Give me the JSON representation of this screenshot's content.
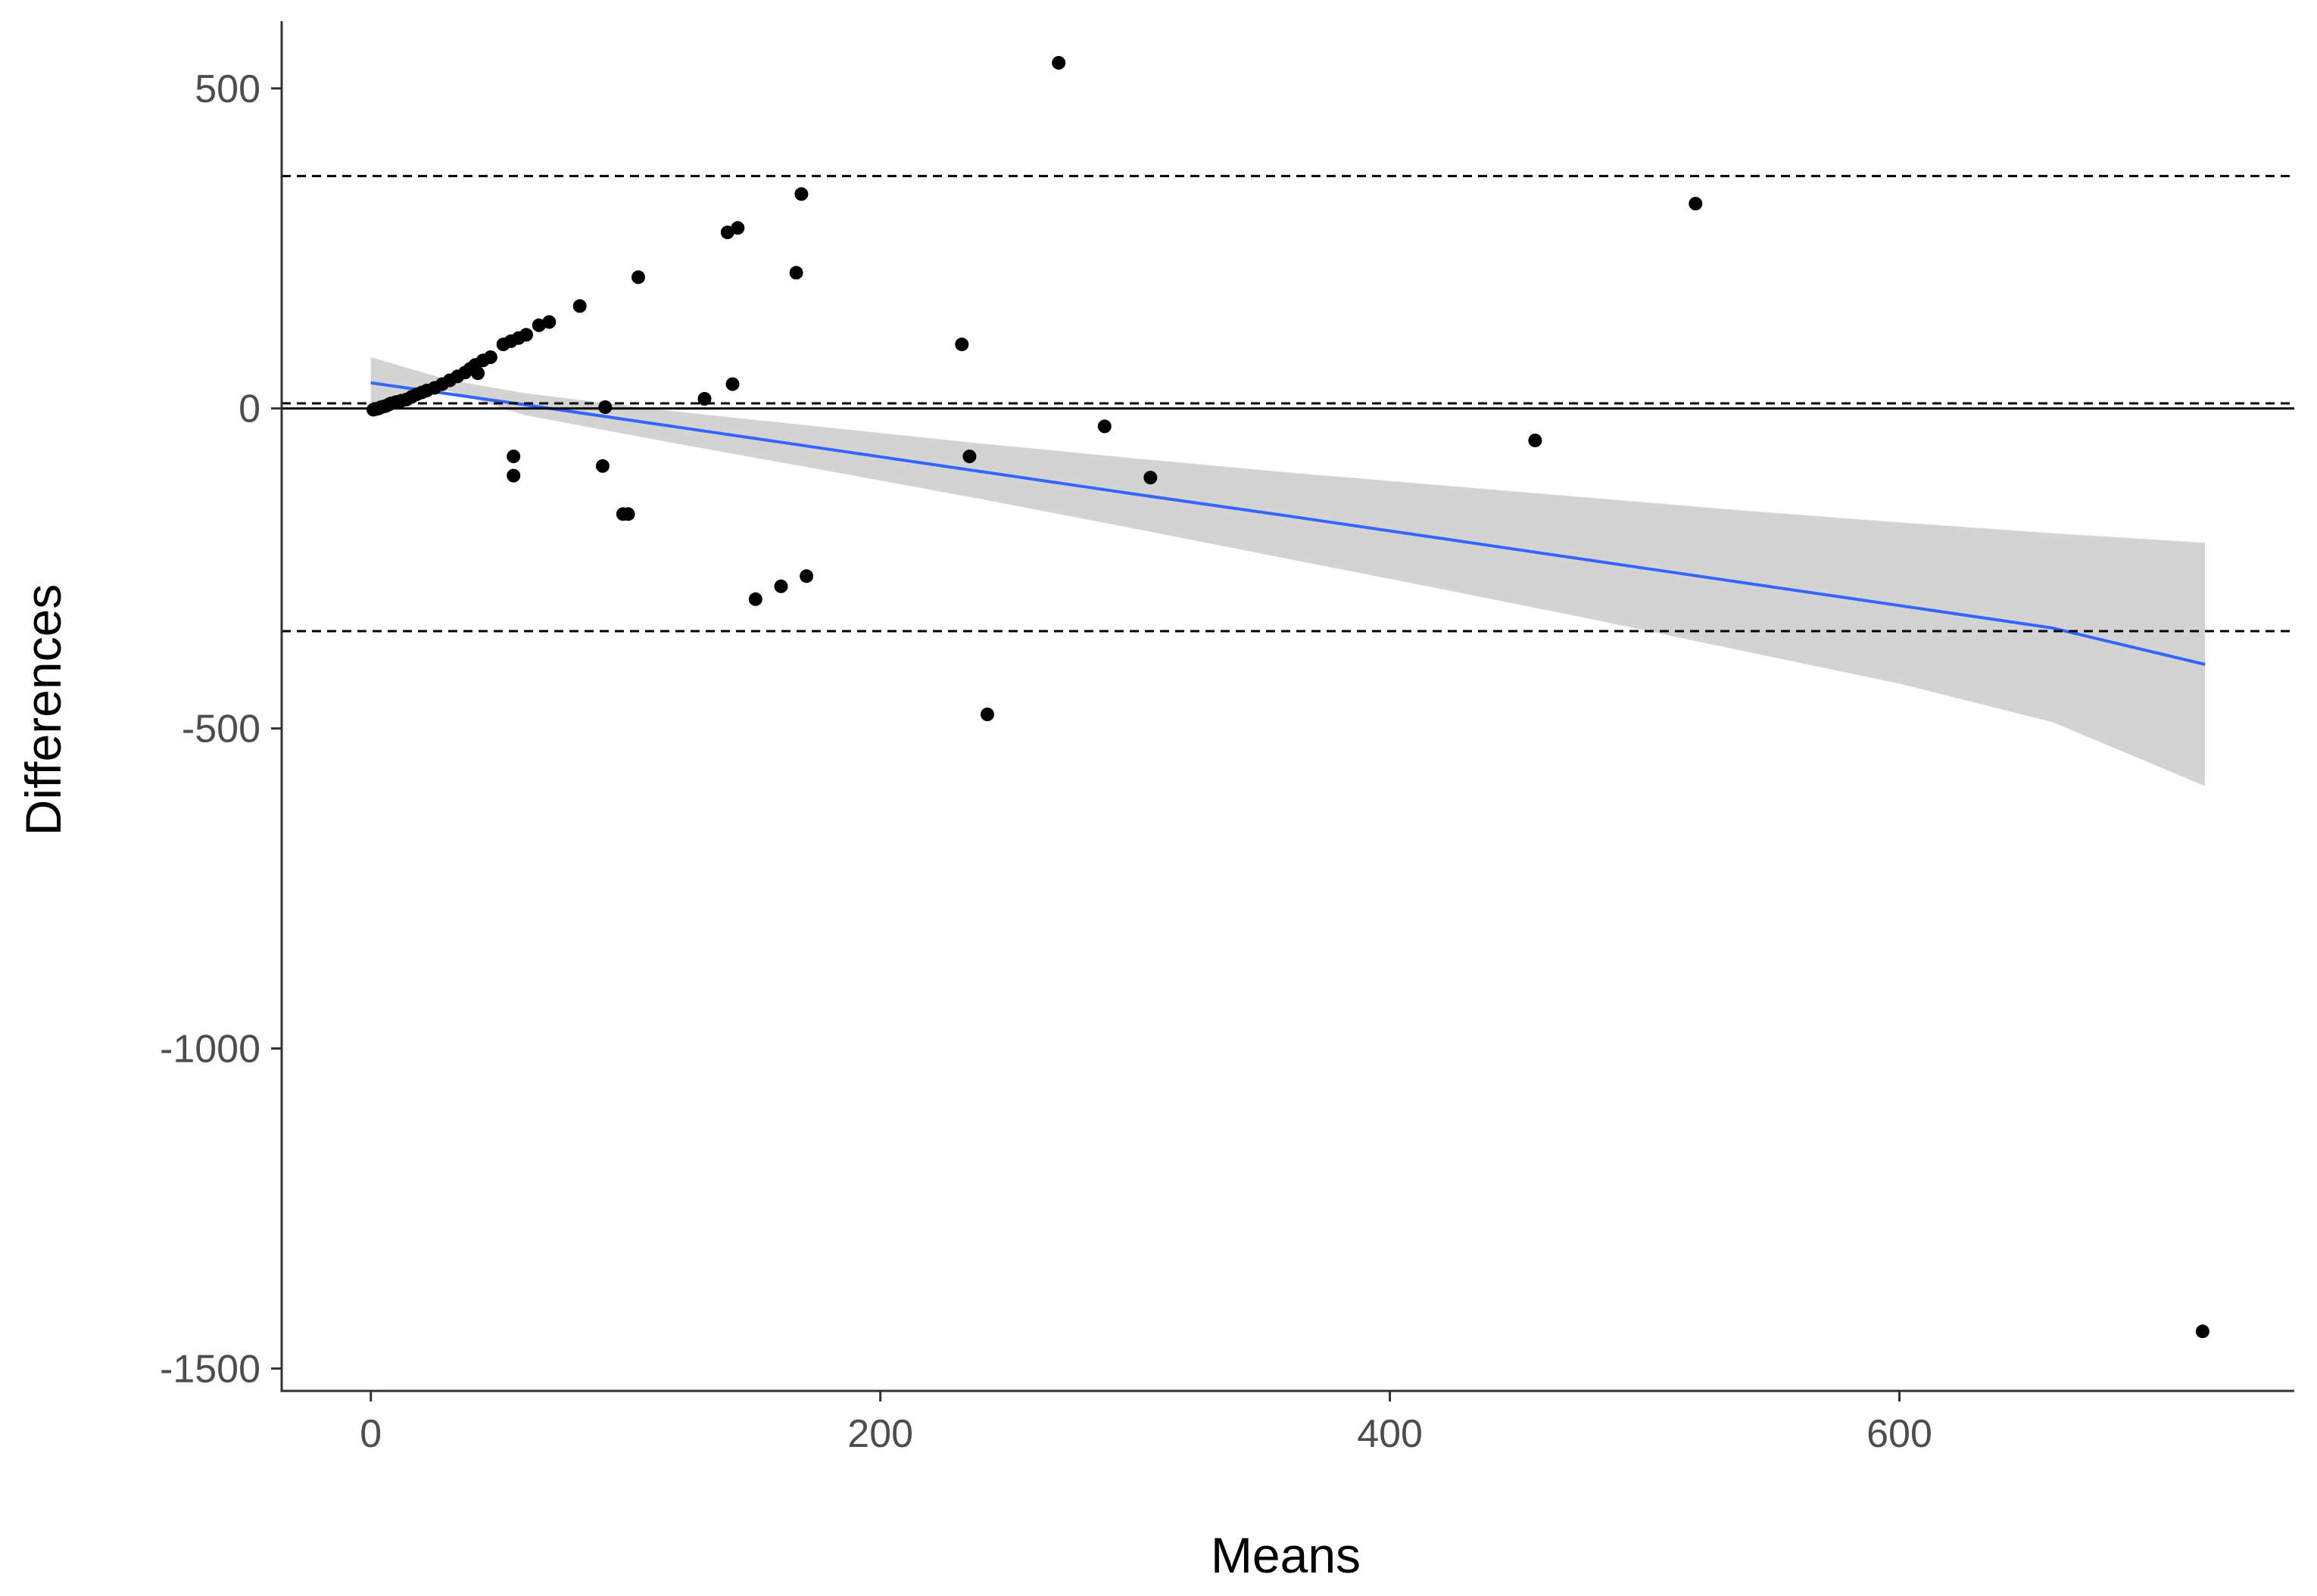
{
  "chart_data": {
    "type": "scatter",
    "title": "",
    "xlabel": "Means",
    "ylabel": "Differences",
    "xlim": [
      -35,
      755
    ],
    "ylim": [
      -1535,
      605
    ],
    "x_ticks": [
      0,
      200,
      400,
      600
    ],
    "x_tick_labels": [
      "0",
      "200",
      "400",
      "600"
    ],
    "y_ticks": [
      500,
      0,
      -500,
      -1000,
      -1500
    ],
    "y_tick_labels": [
      "500",
      "0",
      "-500",
      "-1000",
      "-1500"
    ],
    "grid": false,
    "zero_line": 0,
    "mean_difference": 8,
    "upper_limit_of_agreement": 363,
    "lower_limit_of_agreement": -348,
    "points": [
      {
        "x": 1,
        "y": -2
      },
      {
        "x": 2,
        "y": -1
      },
      {
        "x": 3,
        "y": 0
      },
      {
        "x": 4,
        "y": 2
      },
      {
        "x": 5,
        "y": 3
      },
      {
        "x": 6,
        "y": 4
      },
      {
        "x": 7,
        "y": 6
      },
      {
        "x": 8,
        "y": 8
      },
      {
        "x": 10,
        "y": 10
      },
      {
        "x": 12,
        "y": 12
      },
      {
        "x": 14,
        "y": 14
      },
      {
        "x": 16,
        "y": 18
      },
      {
        "x": 18,
        "y": 22
      },
      {
        "x": 20,
        "y": 25
      },
      {
        "x": 22,
        "y": 28
      },
      {
        "x": 25,
        "y": 32
      },
      {
        "x": 28,
        "y": 38
      },
      {
        "x": 31,
        "y": 44
      },
      {
        "x": 34,
        "y": 50
      },
      {
        "x": 37,
        "y": 56
      },
      {
        "x": 39,
        "y": 62
      },
      {
        "x": 41,
        "y": 68
      },
      {
        "x": 42,
        "y": 55
      },
      {
        "x": 44,
        "y": 75
      },
      {
        "x": 47,
        "y": 80
      },
      {
        "x": 52,
        "y": 100
      },
      {
        "x": 55,
        "y": 105
      },
      {
        "x": 58,
        "y": 110
      },
      {
        "x": 61,
        "y": 115
      },
      {
        "x": 66,
        "y": 130
      },
      {
        "x": 70,
        "y": 135
      },
      {
        "x": 82,
        "y": 160
      },
      {
        "x": 56,
        "y": -75
      },
      {
        "x": 56,
        "y": -105
      },
      {
        "x": 91,
        "y": -90
      },
      {
        "x": 92,
        "y": 2
      },
      {
        "x": 99,
        "y": -165
      },
      {
        "x": 101,
        "y": -165
      },
      {
        "x": 105,
        "y": 205
      },
      {
        "x": 131,
        "y": 15
      },
      {
        "x": 140,
        "y": 275
      },
      {
        "x": 142,
        "y": 38
      },
      {
        "x": 144,
        "y": 282
      },
      {
        "x": 151,
        "y": -298
      },
      {
        "x": 161,
        "y": -278
      },
      {
        "x": 167,
        "y": 212
      },
      {
        "x": 169,
        "y": 335
      },
      {
        "x": 171,
        "y": -262
      },
      {
        "x": 232,
        "y": 100
      },
      {
        "x": 235,
        "y": -75
      },
      {
        "x": 242,
        "y": -478
      },
      {
        "x": 270,
        "y": 540
      },
      {
        "x": 288,
        "y": -28
      },
      {
        "x": 306,
        "y": -108
      },
      {
        "x": 457,
        "y": -50
      },
      {
        "x": 520,
        "y": 320
      },
      {
        "x": 719,
        "y": -1442
      }
    ],
    "regression_line": {
      "x": [
        0,
        60,
        120,
        180,
        240,
        300,
        360,
        420,
        480,
        540,
        600,
        660,
        720
      ],
      "y": [
        40,
        6,
        -29,
        -64,
        -99,
        -134,
        -168,
        -203,
        -238,
        -273,
        -308,
        -343,
        -400
      ]
    },
    "confidence_band": {
      "x": [
        0,
        30,
        60,
        120,
        180,
        240,
        300,
        360,
        420,
        480,
        540,
        600,
        660,
        720
      ],
      "upper": [
        80,
        45,
        24,
        -5,
        -30,
        -55,
        -78,
        -100,
        -120,
        -140,
        -160,
        -178,
        -195,
        -210
      ],
      "lower": [
        0,
        28,
        -10,
        -55,
        -98,
        -142,
        -188,
        -235,
        -282,
        -330,
        -380,
        -430,
        -490,
        -590
      ]
    },
    "colors": {
      "points": "#000000",
      "regression_line": "#3366ff",
      "confidence_band": "#d3d3d3",
      "reference_lines": "#000000",
      "axis": "#333333",
      "tick_labels": "#4d4d4d"
    }
  }
}
